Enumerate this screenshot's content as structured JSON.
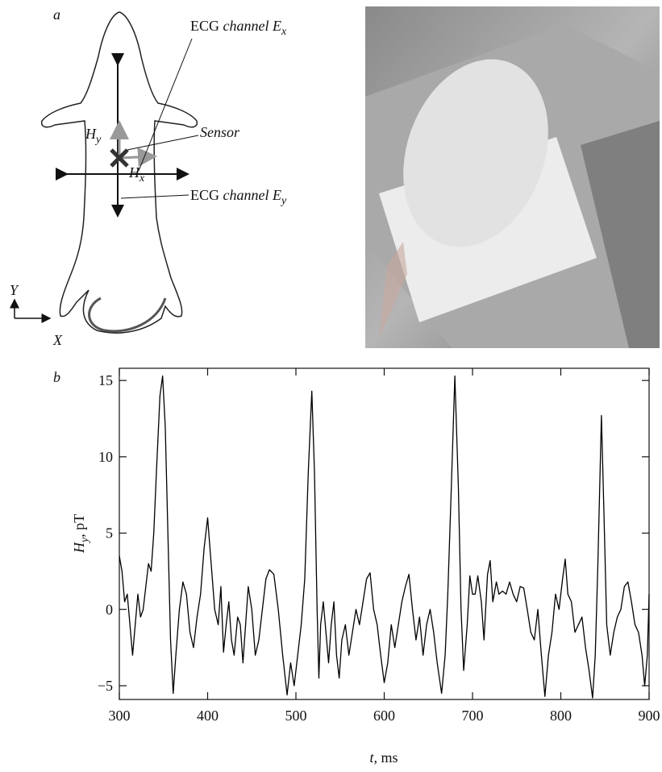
{
  "panel_a": {
    "label": "a",
    "ecg_x": {
      "text": "ECG ",
      "italic": "channel E",
      "sub": "x"
    },
    "sensor": "Sensor",
    "hy": {
      "symbol": "H",
      "sub": "y"
    },
    "hx": {
      "symbol": "H",
      "sub": "x"
    },
    "ecg_y": {
      "text": "ECG ",
      "italic": "channel E",
      "sub": "y"
    },
    "axis_y": "Y",
    "axis_x": "X"
  },
  "chart_data": {
    "type": "line",
    "panel_label": "b",
    "ylabel": {
      "symbol": "H",
      "sub": "y",
      "unit": ", pT"
    },
    "xlabel": {
      "symbol": "t",
      "unit": ", ms"
    },
    "color": "#000000",
    "xlim": [
      300,
      900
    ],
    "xticks": [
      300,
      400,
      500,
      600,
      700,
      800,
      900
    ],
    "ylim": [
      -5.9,
      15.8
    ],
    "yticks": [
      {
        "value": -5,
        "label": "−5"
      },
      0,
      5,
      10,
      15
    ],
    "x": [
      300,
      303,
      306,
      309,
      312,
      315,
      318,
      321,
      324,
      327,
      330,
      333,
      336,
      339,
      342,
      346,
      349,
      352,
      355,
      358,
      361,
      364,
      368,
      372,
      376,
      380,
      384,
      388,
      392,
      396,
      400,
      404,
      408,
      412,
      415,
      418,
      421,
      424,
      427,
      430,
      434,
      437,
      440,
      443,
      446,
      450,
      454,
      458,
      462,
      466,
      470,
      475,
      480,
      485,
      490,
      494,
      498,
      502,
      506,
      510,
      514,
      518,
      521,
      524,
      526,
      528,
      531,
      534,
      537,
      540,
      543,
      546,
      549,
      552,
      556,
      560,
      564,
      568,
      572,
      576,
      580,
      584,
      588,
      592,
      596,
      600,
      604,
      608,
      612,
      616,
      620,
      624,
      628,
      632,
      636,
      640,
      644,
      648,
      652,
      656,
      660,
      665,
      669,
      672,
      676,
      680,
      684,
      687,
      690,
      694,
      697,
      700,
      703,
      706,
      710,
      713,
      717,
      720,
      723,
      727,
      730,
      734,
      738,
      742,
      746,
      750,
      754,
      758,
      762,
      766,
      770,
      774,
      778,
      782,
      786,
      790,
      794,
      798,
      802,
      805,
      808,
      812,
      816,
      820,
      824,
      828,
      832,
      836,
      839,
      842,
      846,
      849,
      852,
      856,
      860,
      864,
      868,
      872,
      876,
      880,
      884,
      888,
      892,
      895,
      898,
      900
    ],
    "values": [
      3.5,
      2.5,
      0.5,
      1,
      -1,
      -3,
      -1,
      1,
      -0.5,
      0,
      1.5,
      3,
      2.5,
      5,
      9,
      14,
      15.3,
      12,
      5,
      -2,
      -5.5,
      -3,
      0,
      1.8,
      1,
      -1.5,
      -2.5,
      -0.5,
      1,
      4,
      6,
      3,
      0,
      -1,
      1.5,
      -2.8,
      -1,
      0.5,
      -2,
      -3,
      -0.5,
      -1,
      -3.5,
      -1,
      1.5,
      0,
      -3,
      -2,
      0,
      2,
      2.6,
      2.3,
      0,
      -3,
      -5.6,
      -3.5,
      -5,
      -3,
      -1,
      2,
      9,
      14.3,
      9,
      0,
      -4.5,
      -1,
      0.5,
      -1.5,
      -3.5,
      -1,
      0.5,
      -3,
      -4.5,
      -2,
      -1,
      -3,
      -1.5,
      0,
      -1,
      0.5,
      2,
      2.4,
      0,
      -1,
      -3,
      -4.8,
      -3.5,
      -1,
      -2.5,
      -1,
      0.5,
      1.5,
      2.3,
      0,
      -2,
      -0.5,
      -3,
      -1,
      0,
      -1.5,
      -3.5,
      -5.5,
      -3,
      1,
      8,
      15.3,
      8,
      0,
      -4,
      -1,
      2.2,
      1,
      1,
      2.2,
      0.5,
      -2,
      2.3,
      3.2,
      0.5,
      1.8,
      1,
      1.2,
      1,
      1.8,
      1,
      0.5,
      1.5,
      1.4,
      0,
      -1.5,
      -2,
      0,
      -3,
      -5.7,
      -3,
      -1.5,
      1,
      0,
      2,
      3.3,
      1,
      0.5,
      -1.5,
      -1,
      -0.5,
      -2.5,
      -4,
      -5.8,
      -3,
      3,
      12.7,
      6,
      -1,
      -3,
      -1.5,
      -0.5,
      0,
      1.5,
      1.8,
      0.5,
      -1,
      -1.5,
      -3,
      -5,
      -3,
      1
    ]
  }
}
